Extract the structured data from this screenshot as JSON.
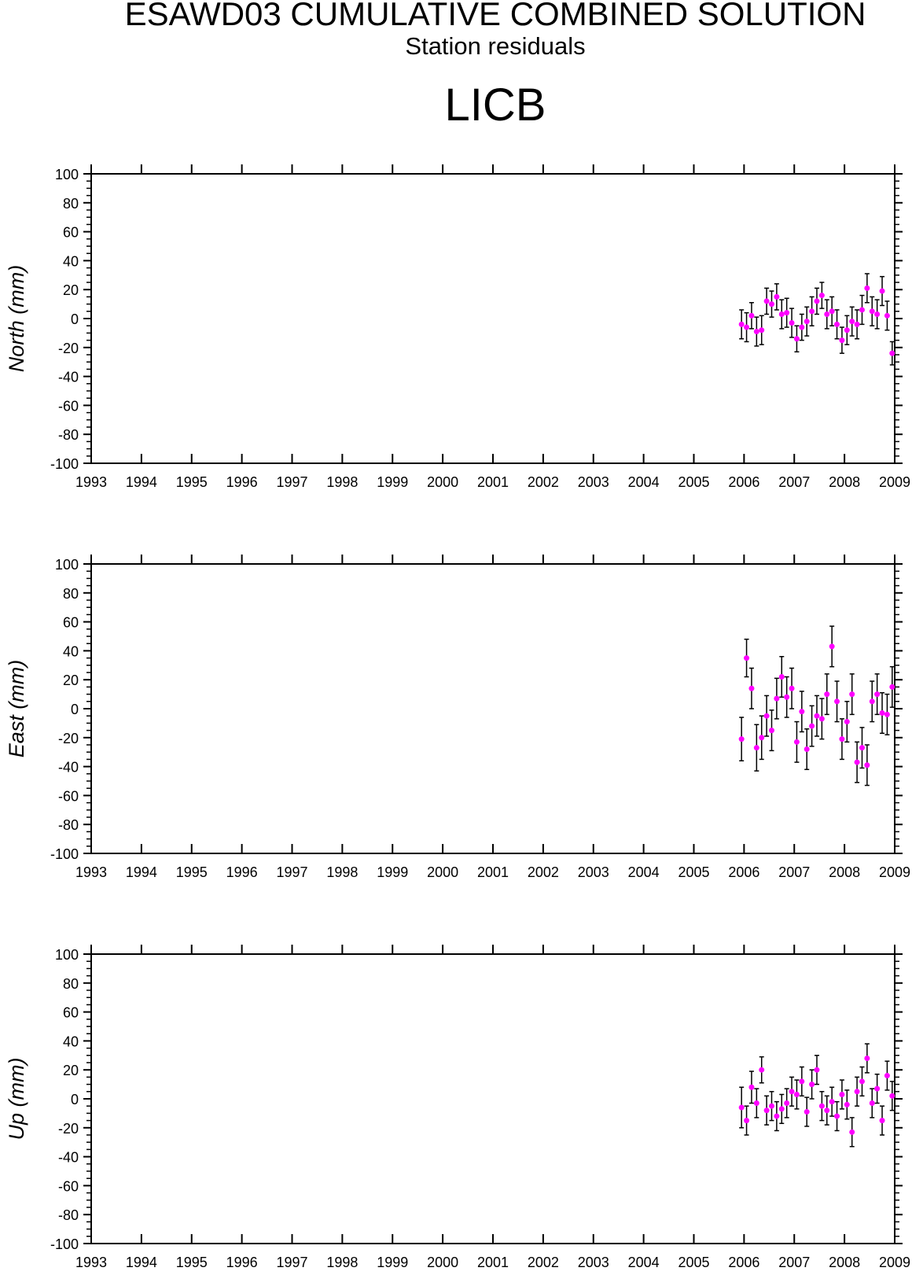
{
  "header": {
    "title": "ESAWD03 CUMULATIVE COMBINED SOLUTION",
    "subtitle": "Station residuals",
    "station": "LICB"
  },
  "colors": {
    "point": "#ff00ff",
    "errorbar": "#000000",
    "axis": "#000000",
    "background": "#ffffff"
  },
  "chart_data": [
    {
      "type": "scatter",
      "ylabel": "North (mm)",
      "xlim": [
        1993,
        2009
      ],
      "ylim": [
        -100,
        100
      ],
      "x_ticks": [
        "1993",
        "1994",
        "1995",
        "1996",
        "1997",
        "1998",
        "1999",
        "2000",
        "2001",
        "2002",
        "2003",
        "2004",
        "2005",
        "2006",
        "2007",
        "2008",
        "2009"
      ],
      "y_ticks": [
        "100",
        "80",
        "60",
        "40",
        "20",
        "0",
        "-20",
        "-40",
        "-60",
        "-80",
        "-100"
      ],
      "grid": false,
      "series": [
        {
          "x": [
            2005.95,
            2006.05,
            2006.15,
            2006.25,
            2006.35,
            2006.45,
            2006.55,
            2006.65,
            2006.75,
            2006.85,
            2006.95,
            2007.05,
            2007.15,
            2007.25,
            2007.35,
            2007.45,
            2007.55,
            2007.65,
            2007.75,
            2007.85,
            2007.95,
            2008.05,
            2008.15,
            2008.25,
            2008.35,
            2008.45,
            2008.55,
            2008.65,
            2008.75,
            2008.85,
            2008.95
          ],
          "y": [
            -4,
            -6,
            2,
            -9,
            -8,
            12,
            10,
            15,
            3,
            4,
            -3,
            -14,
            -6,
            -2,
            5,
            12,
            16,
            3,
            5,
            -4,
            -15,
            -8,
            -2,
            -4,
            6,
            21,
            5,
            3,
            19,
            2,
            -24
          ],
          "err": [
            10,
            10,
            9,
            10,
            10,
            9,
            9,
            9,
            10,
            10,
            10,
            9,
            9,
            10,
            10,
            9,
            9,
            10,
            10,
            10,
            9,
            10,
            10,
            10,
            10,
            10,
            10,
            10,
            10,
            10,
            8
          ]
        }
      ]
    },
    {
      "type": "scatter",
      "ylabel": "East (mm)",
      "xlim": [
        1993,
        2009
      ],
      "ylim": [
        -100,
        100
      ],
      "x_ticks": [
        "1993",
        "1994",
        "1995",
        "1996",
        "1997",
        "1998",
        "1999",
        "2000",
        "2001",
        "2002",
        "2003",
        "2004",
        "2005",
        "2006",
        "2007",
        "2008",
        "2009"
      ],
      "y_ticks": [
        "100",
        "80",
        "60",
        "40",
        "20",
        "0",
        "-20",
        "-40",
        "-60",
        "-80",
        "-100"
      ],
      "grid": false,
      "series": [
        {
          "x": [
            2005.95,
            2006.05,
            2006.15,
            2006.25,
            2006.35,
            2006.45,
            2006.55,
            2006.65,
            2006.75,
            2006.85,
            2006.95,
            2007.05,
            2007.15,
            2007.25,
            2007.35,
            2007.45,
            2007.55,
            2007.65,
            2007.75,
            2007.85,
            2007.95,
            2008.05,
            2008.15,
            2008.25,
            2008.35,
            2008.45,
            2008.55,
            2008.65,
            2008.75,
            2008.85,
            2008.95
          ],
          "y": [
            -21,
            35,
            14,
            -27,
            -20,
            -5,
            -15,
            7,
            22,
            8,
            14,
            -23,
            -2,
            -28,
            -12,
            -5,
            -7,
            10,
            43,
            5,
            -21,
            -9,
            10,
            -37,
            -27,
            -39,
            5,
            10,
            -3,
            -4,
            15
          ],
          "err": [
            15,
            13,
            14,
            16,
            15,
            14,
            14,
            14,
            14,
            14,
            14,
            14,
            14,
            14,
            14,
            14,
            14,
            14,
            14,
            14,
            14,
            14,
            14,
            14,
            14,
            14,
            14,
            14,
            14,
            14,
            14
          ]
        }
      ]
    },
    {
      "type": "scatter",
      "ylabel": "Up (mm)",
      "xlim": [
        1993,
        2009
      ],
      "ylim": [
        -100,
        100
      ],
      "x_ticks": [
        "1993",
        "1994",
        "1995",
        "1996",
        "1997",
        "1998",
        "1999",
        "2000",
        "2001",
        "2002",
        "2003",
        "2004",
        "2005",
        "2006",
        "2007",
        "2008",
        "2009"
      ],
      "y_ticks": [
        "100",
        "80",
        "60",
        "40",
        "20",
        "0",
        "-20",
        "-40",
        "-60",
        "-80",
        "-100"
      ],
      "grid": false,
      "series": [
        {
          "x": [
            2005.95,
            2006.05,
            2006.15,
            2006.25,
            2006.35,
            2006.45,
            2006.55,
            2006.65,
            2006.75,
            2006.85,
            2006.95,
            2007.05,
            2007.15,
            2007.25,
            2007.35,
            2007.45,
            2007.55,
            2007.65,
            2007.75,
            2007.85,
            2007.95,
            2008.05,
            2008.15,
            2008.25,
            2008.35,
            2008.45,
            2008.55,
            2008.65,
            2008.75,
            2008.85,
            2008.95
          ],
          "y": [
            -6,
            -15,
            8,
            -3,
            20,
            -8,
            -5,
            -12,
            -7,
            -3,
            5,
            3,
            12,
            -9,
            10,
            20,
            -5,
            -8,
            -2,
            -12,
            3,
            -4,
            -23,
            5,
            12,
            28,
            -3,
            7,
            -15,
            16,
            2
          ],
          "err": [
            14,
            10,
            11,
            10,
            9,
            10,
            10,
            10,
            10,
            10,
            10,
            10,
            10,
            10,
            10,
            10,
            10,
            10,
            10,
            10,
            10,
            10,
            10,
            10,
            10,
            10,
            10,
            10,
            10,
            10,
            10
          ]
        }
      ]
    }
  ]
}
